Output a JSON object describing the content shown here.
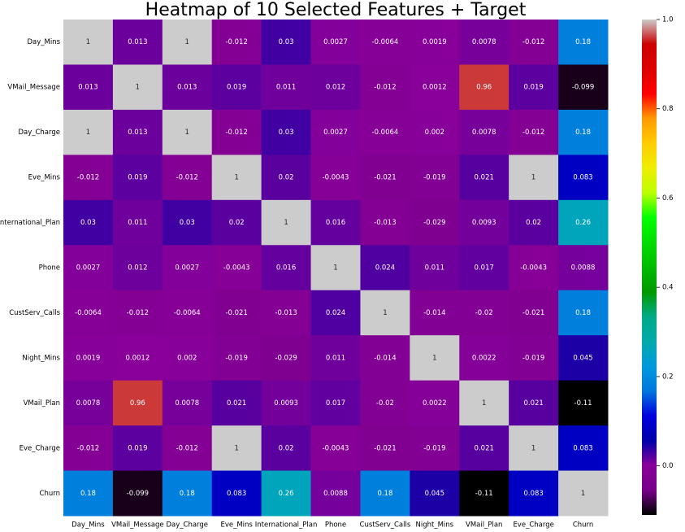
{
  "chart_data": {
    "type": "heatmap",
    "title": "Heatmap of 10 Selected Features + Target",
    "x_categories": [
      "Day_Mins",
      "VMail_Message",
      "Day_Charge",
      "Eve_Mins",
      "International_Plan",
      "Phone",
      "CustServ_Calls",
      "Night_Mins",
      "VMail_Plan",
      "Eve_Charge",
      "Churn"
    ],
    "y_categories": [
      "Day_Mins",
      "VMail_Message",
      "Day_Charge",
      "Eve_Mins",
      "International_Plan",
      "Phone",
      "CustServ_Calls",
      "Night_Mins",
      "VMail_Plan",
      "Eve_Charge",
      "Churn"
    ],
    "values": [
      [
        1,
        0.013,
        1,
        -0.012,
        0.03,
        0.0027,
        -0.0064,
        0.0019,
        0.0078,
        -0.012,
        0.18
      ],
      [
        0.013,
        1,
        0.013,
        0.019,
        0.011,
        0.012,
        -0.012,
        0.0012,
        0.96,
        0.019,
        -0.099
      ],
      [
        1,
        0.013,
        1,
        -0.012,
        0.03,
        0.0027,
        -0.0064,
        0.002,
        0.0078,
        -0.012,
        0.18
      ],
      [
        -0.012,
        0.019,
        -0.012,
        1,
        0.02,
        -0.0043,
        -0.021,
        -0.019,
        0.021,
        1,
        0.083
      ],
      [
        0.03,
        0.011,
        0.03,
        0.02,
        1,
        0.016,
        -0.013,
        -0.029,
        0.0093,
        0.02,
        0.26
      ],
      [
        0.0027,
        0.012,
        0.0027,
        -0.0043,
        0.016,
        1,
        0.024,
        0.011,
        0.017,
        -0.0043,
        0.0088
      ],
      [
        -0.0064,
        -0.012,
        -0.0064,
        -0.021,
        -0.013,
        0.024,
        1,
        -0.014,
        -0.02,
        -0.021,
        0.18
      ],
      [
        0.0019,
        0.0012,
        0.002,
        -0.019,
        -0.029,
        0.011,
        -0.014,
        1,
        0.0022,
        -0.019,
        0.045
      ],
      [
        0.0078,
        0.96,
        0.0078,
        0.021,
        0.0093,
        0.017,
        -0.02,
        0.0022,
        1,
        0.021,
        -0.11
      ],
      [
        -0.012,
        0.019,
        -0.012,
        1,
        0.02,
        -0.0043,
        -0.021,
        -0.019,
        0.021,
        1,
        0.083
      ],
      [
        0.18,
        -0.099,
        0.18,
        0.083,
        0.26,
        0.0088,
        0.18,
        0.045,
        -0.11,
        0.083,
        1
      ]
    ],
    "colormap": "nipy_spectral",
    "zlim": [
      -0.11,
      1
    ],
    "zticks": [
      {
        "value": 0,
        "label": "0.0"
      },
      {
        "value": 0.2,
        "label": "0.2"
      },
      {
        "value": 0.4,
        "label": "0.4"
      },
      {
        "value": 0.6,
        "label": "0.6"
      },
      {
        "value": 0.8,
        "label": "0.8"
      },
      {
        "value": 1,
        "label": "1.0"
      }
    ]
  }
}
